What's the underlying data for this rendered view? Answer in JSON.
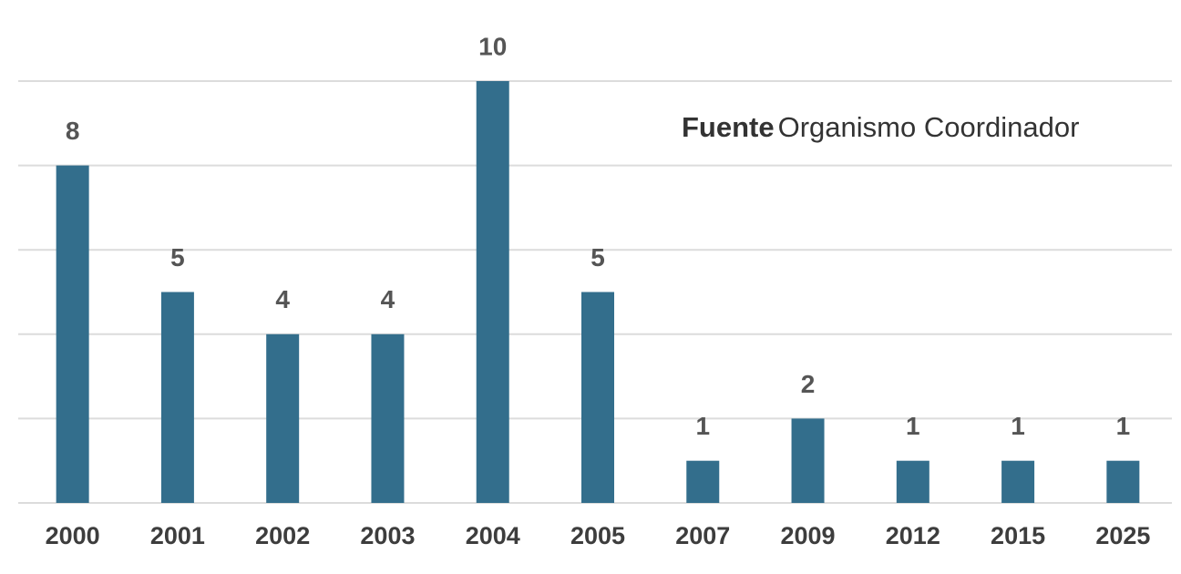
{
  "chart_data": {
    "type": "bar",
    "categories": [
      "2000",
      "2001",
      "2002",
      "2003",
      "2004",
      "2005",
      "2007",
      "2009",
      "2012",
      "2015",
      "2025"
    ],
    "values": [
      8,
      5,
      4,
      4,
      10,
      5,
      1,
      2,
      1,
      1,
      1
    ],
    "color": "#336e8c",
    "ylim": [
      0,
      10
    ],
    "yticks": [
      0,
      2,
      4,
      6,
      8,
      10
    ],
    "grid": true,
    "annotation": {
      "label": "Fuente",
      "text": "Organismo Coordinador"
    }
  }
}
